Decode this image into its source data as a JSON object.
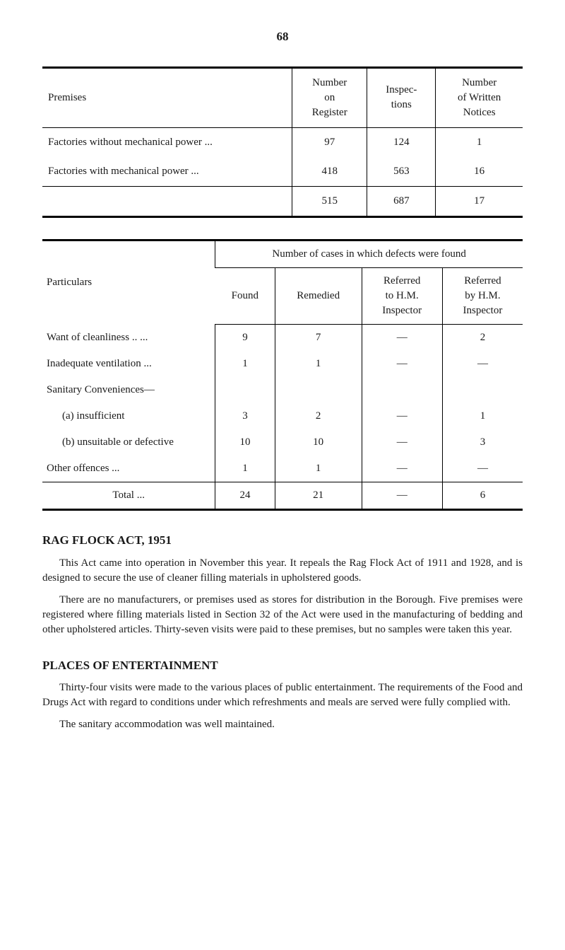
{
  "page_number": "68",
  "premises_table": {
    "headers": [
      "Premises",
      "Number\non\nRegister",
      "Inspec-\ntions",
      "Number\nof Written\nNotices"
    ],
    "rows": [
      {
        "label": "Factories without mechanical power  ...",
        "on_register": "97",
        "inspections": "124",
        "notices": "1"
      },
      {
        "label": "Factories with mechanical power        ...",
        "on_register": "418",
        "inspections": "563",
        "notices": "16"
      }
    ],
    "totals": {
      "on_register": "515",
      "inspections": "687",
      "notices": "17"
    }
  },
  "particulars_table": {
    "main_header": "Number of cases in which defects were found",
    "col1_header": "Particulars",
    "sub_headers": [
      "Found",
      "Remedied",
      "Referred\nto H.M.\nInspector",
      "Referred\nby H.M.\nInspector"
    ],
    "rows": [
      {
        "label": "Want of cleanliness ..      ...",
        "found": "9",
        "remedied": "7",
        "ref_to": "—",
        "ref_by": "2"
      },
      {
        "label": "Inadequate ventilation     ...",
        "found": "1",
        "remedied": "1",
        "ref_to": "—",
        "ref_by": "—"
      },
      {
        "label": "Sanitary Conveniences—",
        "found": "",
        "remedied": "",
        "ref_to": "",
        "ref_by": ""
      },
      {
        "label": "(a)  insufficient",
        "sub": true,
        "found": "3",
        "remedied": "2",
        "ref_to": "—",
        "ref_by": "1"
      },
      {
        "label": "(b)  unsuitable or defective",
        "sub": true,
        "found": "10",
        "remedied": "10",
        "ref_to": "—",
        "ref_by": "3"
      },
      {
        "label": "Other offences          ...",
        "found": "1",
        "remedied": "1",
        "ref_to": "—",
        "ref_by": "—"
      }
    ],
    "total": {
      "label": "Total    ...",
      "found": "24",
      "remedied": "21",
      "ref_to": "—",
      "ref_by": "6"
    }
  },
  "sections": {
    "rag_flock": {
      "title": "RAG FLOCK ACT, 1951",
      "p1": "This Act came into operation in November this year.  It repeals the Rag Flock Act of 1911 and 1928, and is designed to secure the use of cleaner filling materials in upholstered goods.",
      "p2": "There are no manufacturers, or premises used as stores for distribution in the Borough.  Five premises were registered where filling materials listed in Section 32 of the Act were used in the manufacturing of bedding and other upholstered articles.  Thirty-seven visits were paid to these premises, but no samples were taken this year."
    },
    "entertainment": {
      "title": "PLACES OF ENTERTAINMENT",
      "p1": "Thirty-four visits were made to the various places of public entertainment.  The requirements of the Food and Drugs Act with regard to conditions under which refreshments and meals are served were fully complied with.",
      "p2": "The sanitary accommodation was well maintained."
    }
  }
}
